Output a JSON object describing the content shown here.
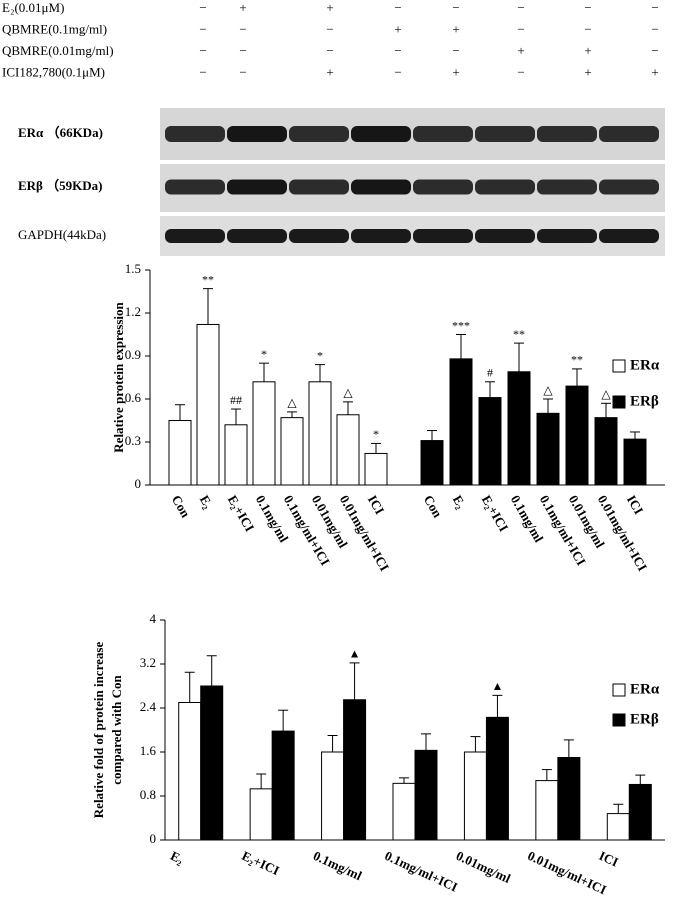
{
  "treatments": {
    "rows": [
      {
        "label": "E₂(0.01μM)",
        "signs": [
          "−",
          "+",
          "+",
          "−",
          "−",
          "−",
          "−",
          "−"
        ]
      },
      {
        "label": "QBMRE(0.1mg/ml)",
        "signs": [
          "−",
          "−",
          "−",
          "+",
          "+",
          "−",
          "−",
          "−"
        ]
      },
      {
        "label": "QBMRE(0.01mg/ml)",
        "signs": [
          "−",
          "−",
          "−",
          "−",
          "−",
          "+",
          "+",
          "−"
        ]
      },
      {
        "label": "ICI182,780(0.1μM)",
        "signs": [
          "−",
          "−",
          "+",
          "−",
          "+",
          "−",
          "+",
          "+"
        ]
      }
    ]
  },
  "blot": {
    "labels": [
      "ERα （66KDa)",
      "ERβ （59KDa)",
      "GAPDH(44kDa)"
    ]
  },
  "chart_data": [
    {
      "type": "bar",
      "ylabel": "Relative protein expression",
      "categories": [
        "Con",
        "E₂",
        "E₂+ICI",
        "0.1mg/ml",
        "0.1mg/ml+ICI",
        "0.01mg/ml",
        "0.01mg/ml+ICI",
        "ICI"
      ],
      "series": [
        {
          "name": "ERα",
          "color": "#ffffff",
          "values": [
            0.45,
            1.12,
            0.42,
            0.72,
            0.47,
            0.72,
            0.49,
            0.22
          ],
          "errors": [
            0.11,
            0.25,
            0.11,
            0.13,
            0.04,
            0.12,
            0.09,
            0.07
          ],
          "annotations": [
            null,
            "**",
            "##",
            "*",
            "△",
            "*",
            "△",
            "*"
          ]
        },
        {
          "name": "ERβ",
          "color": "#000000",
          "values": [
            0.31,
            0.88,
            0.61,
            0.79,
            0.5,
            0.69,
            0.47,
            0.32
          ],
          "errors": [
            0.07,
            0.17,
            0.11,
            0.2,
            0.1,
            0.12,
            0.1,
            0.05
          ],
          "annotations": [
            null,
            "***",
            "#",
            "**",
            "△",
            "**",
            "△",
            null
          ]
        }
      ],
      "ylim": [
        0,
        1.5
      ],
      "yticks": [
        0,
        0.3,
        0.6,
        0.9,
        1.2,
        1.5
      ],
      "legend": "right"
    },
    {
      "type": "bar",
      "ylabel": [
        "Relative fold of protein increase",
        "compared with Con"
      ],
      "categories": [
        "E₂",
        "E₂+ICI",
        "0.1mg/ml",
        "0.1mg/ml+ICI",
        "0.01mg/ml",
        "0.01mg/ml+ICI",
        "ICI"
      ],
      "series": [
        {
          "name": "ERα",
          "color": "#ffffff",
          "values": [
            2.5,
            0.93,
            1.6,
            1.03,
            1.6,
            1.08,
            0.48
          ],
          "errors": [
            0.55,
            0.27,
            0.3,
            0.1,
            0.28,
            0.2,
            0.17
          ],
          "annotations": [
            null,
            null,
            null,
            null,
            null,
            null,
            null
          ]
        },
        {
          "name": "ERβ",
          "color": "#000000",
          "values": [
            2.8,
            1.98,
            2.55,
            1.63,
            2.23,
            1.5,
            1.01
          ],
          "errors": [
            0.55,
            0.38,
            0.67,
            0.3,
            0.4,
            0.32,
            0.17
          ],
          "annotations": [
            null,
            null,
            "▲",
            null,
            "▲",
            null,
            null
          ]
        }
      ],
      "ylim": [
        0,
        4
      ],
      "yticks": [
        0,
        0.8,
        1.6,
        2.4,
        3.2,
        4
      ],
      "legend": "right"
    }
  ]
}
